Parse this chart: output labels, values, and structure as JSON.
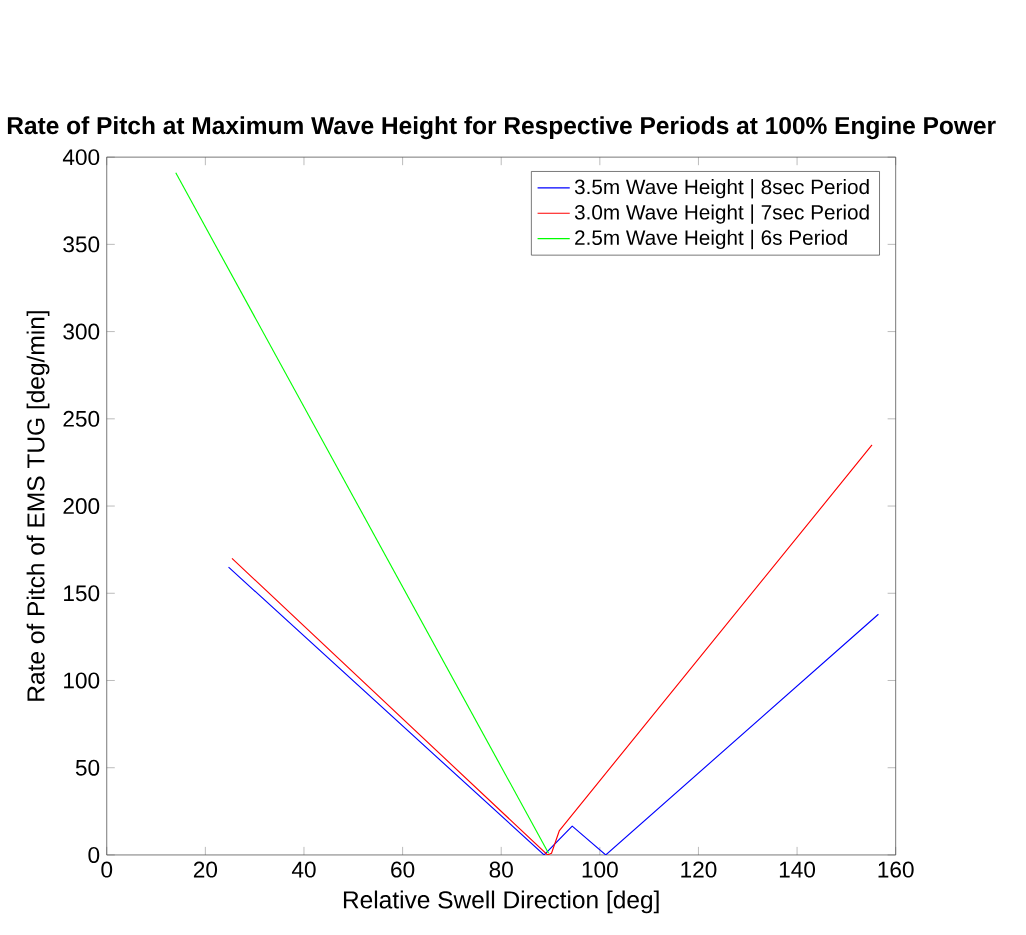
{
  "chart_data": {
    "type": "line",
    "title": "Rate of Pitch at Maximum Wave Height for Respective Periods at 100% Engine Power",
    "xlabel": "Relative Swell Direction [deg]",
    "ylabel": "Rate of Pitch of EMS TUG [deg/min]",
    "xlim": [
      0,
      160
    ],
    "ylim": [
      0,
      400
    ],
    "xticks": [
      0,
      20,
      40,
      60,
      80,
      100,
      120,
      140,
      160
    ],
    "yticks": [
      0,
      50,
      100,
      150,
      200,
      250,
      300,
      350,
      400
    ],
    "legend": "top right",
    "grid": false,
    "series": [
      {
        "name": "3.5m Wave Height | 8sec Period",
        "color": "#0000ff",
        "x": [
          24.7,
          88.7,
          94.4,
          101.2,
          156.5
        ],
        "values": [
          165,
          0,
          16.5,
          0,
          138
        ]
      },
      {
        "name": "3.0m Wave Height | 7sec Period",
        "color": "#ff0000",
        "x": [
          25.4,
          89.4,
          90.2,
          91.8,
          155.2
        ],
        "values": [
          170,
          0,
          1,
          14,
          235
        ]
      },
      {
        "name": "2.5m Wave Height | 6s Period",
        "color": "#00ff00",
        "x": [
          14.0,
          89.6
        ],
        "values": [
          391,
          1
        ]
      }
    ]
  }
}
